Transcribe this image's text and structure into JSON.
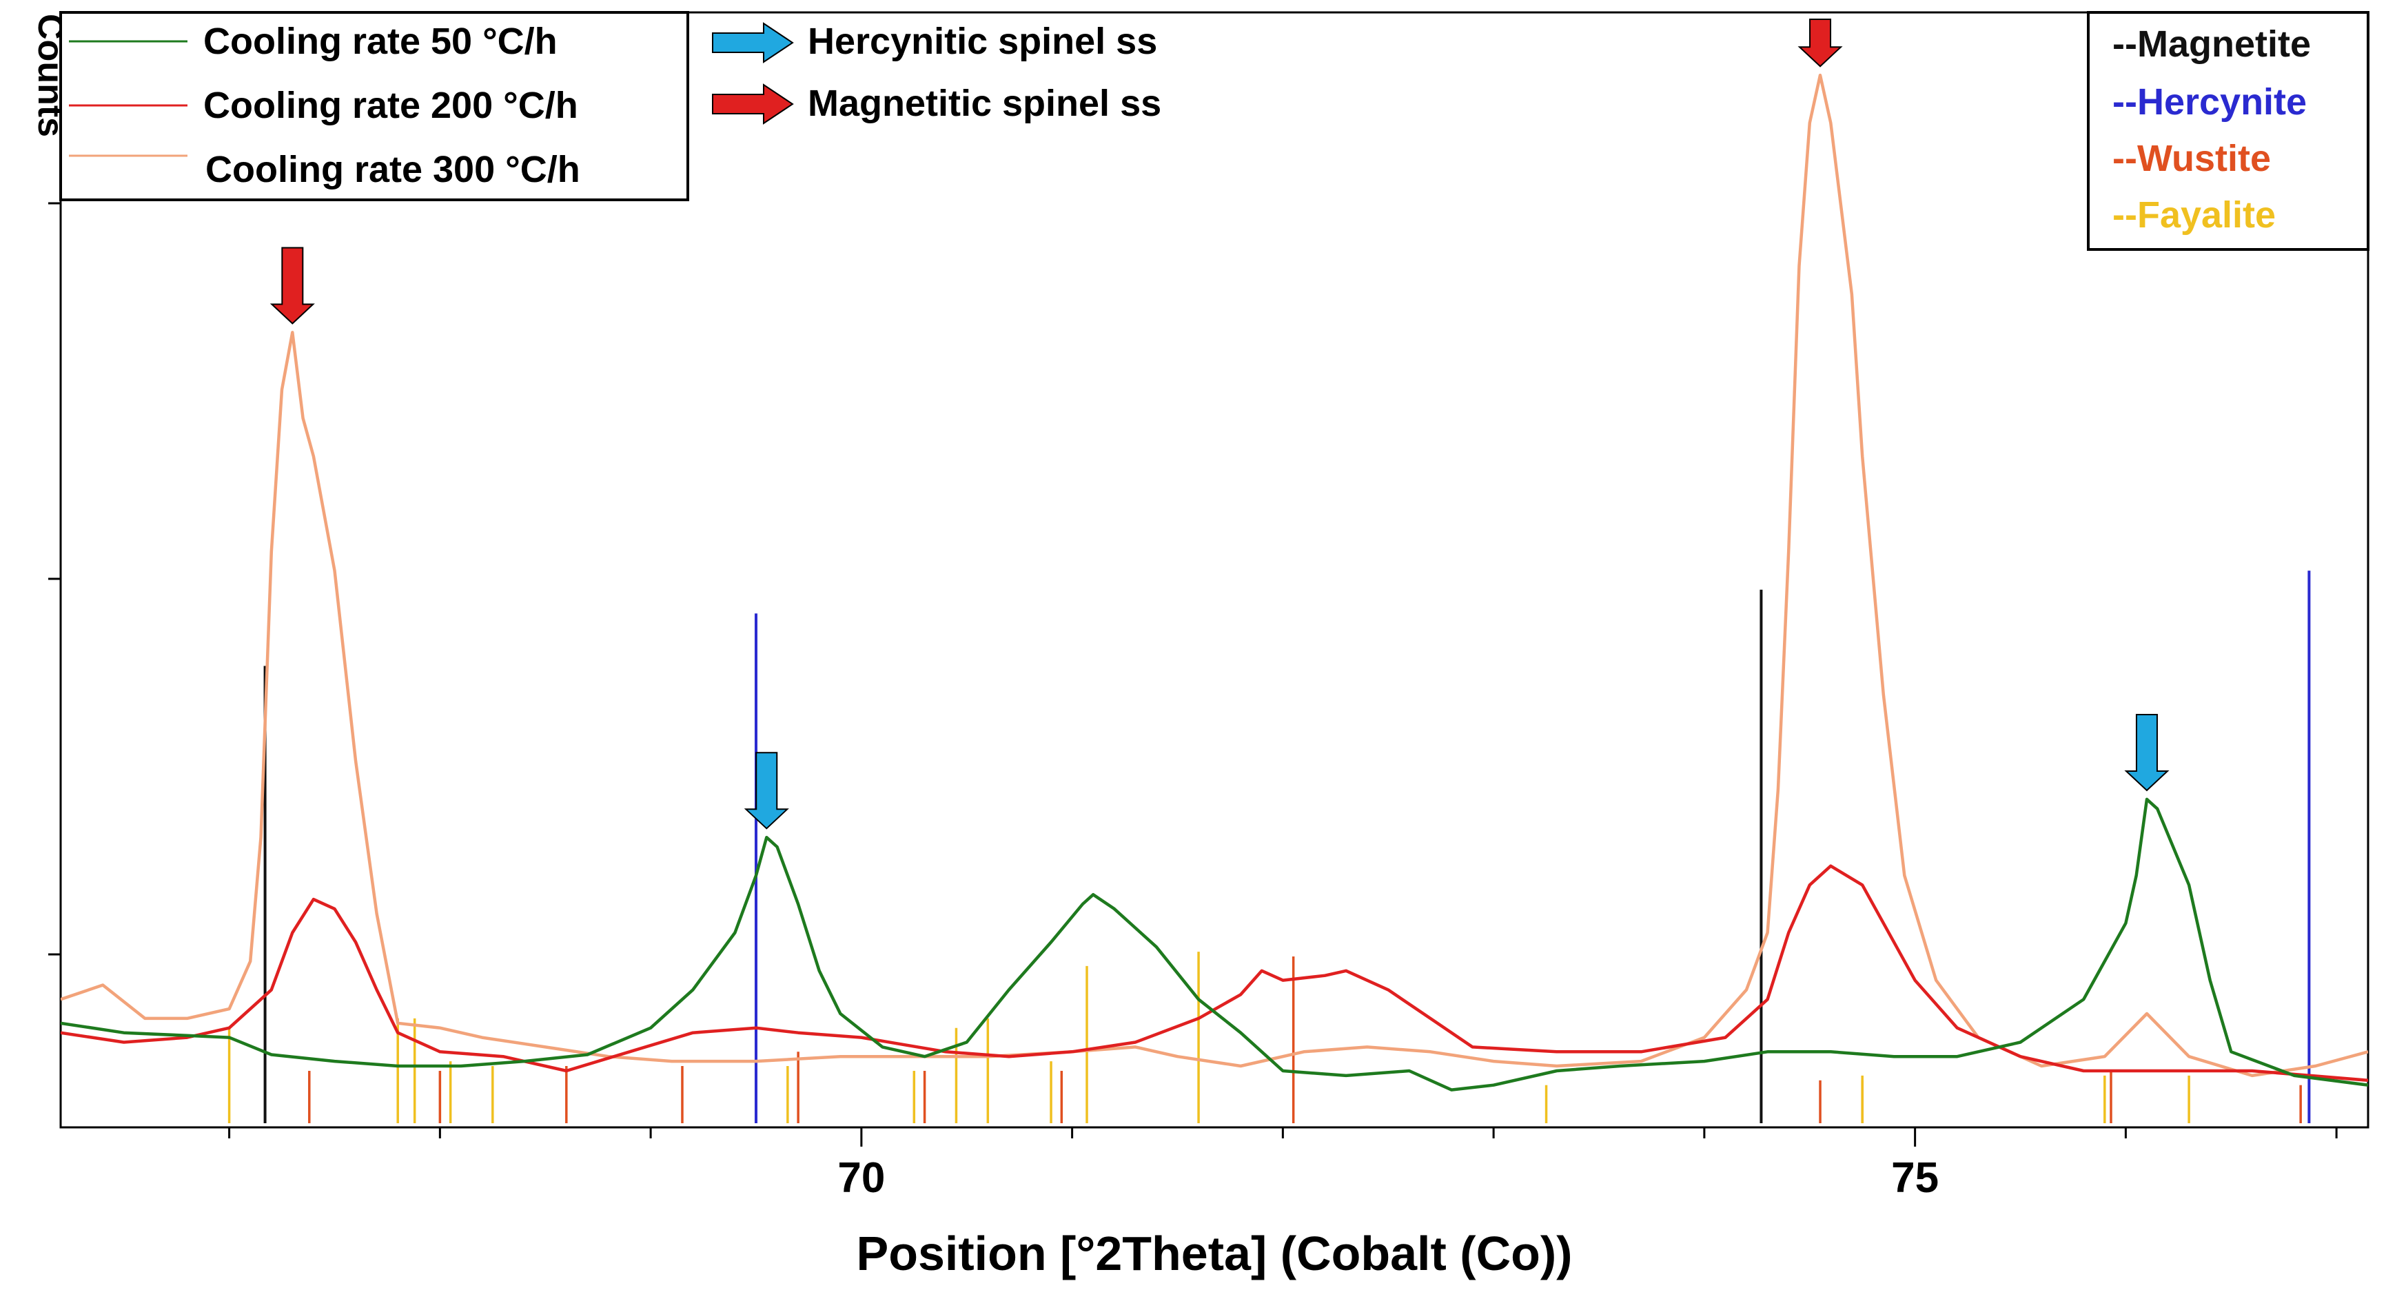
{
  "chart_data": {
    "type": "line",
    "xlabel": "Position [°2Theta] (Cobalt (Co))",
    "ylabel": "Counts",
    "xlim": [
      66.2,
      77.15
    ],
    "ylim": [
      0,
      1150
    ],
    "x_ticks": [
      70,
      75
    ],
    "x_tick_labels": [
      "70",
      "75"
    ],
    "grid": false,
    "legend_placement": "top-left",
    "series": [
      {
        "name": "Cooling rate 50 °C/h",
        "color": "#1e7a1e",
        "points": [
          [
            66.2,
            105
          ],
          [
            66.5,
            95
          ],
          [
            66.8,
            92
          ],
          [
            67.0,
            90
          ],
          [
            67.2,
            72
          ],
          [
            67.5,
            65
          ],
          [
            67.8,
            60
          ],
          [
            68.1,
            60
          ],
          [
            68.4,
            65
          ],
          [
            68.7,
            72
          ],
          [
            69.0,
            100
          ],
          [
            69.2,
            140
          ],
          [
            69.4,
            200
          ],
          [
            69.5,
            260
          ],
          [
            69.55,
            300
          ],
          [
            69.6,
            290
          ],
          [
            69.7,
            230
          ],
          [
            69.8,
            160
          ],
          [
            69.9,
            115
          ],
          [
            70.1,
            80
          ],
          [
            70.3,
            70
          ],
          [
            70.5,
            85
          ],
          [
            70.7,
            140
          ],
          [
            70.9,
            190
          ],
          [
            71.05,
            230
          ],
          [
            71.1,
            240
          ],
          [
            71.2,
            225
          ],
          [
            71.4,
            185
          ],
          [
            71.6,
            130
          ],
          [
            71.8,
            95
          ],
          [
            72.0,
            55
          ],
          [
            72.3,
            50
          ],
          [
            72.6,
            55
          ],
          [
            72.8,
            35
          ],
          [
            73.0,
            40
          ],
          [
            73.3,
            55
          ],
          [
            73.6,
            60
          ],
          [
            74.0,
            65
          ],
          [
            74.3,
            75
          ],
          [
            74.6,
            75
          ],
          [
            74.9,
            70
          ],
          [
            75.2,
            70
          ],
          [
            75.5,
            85
          ],
          [
            75.8,
            130
          ],
          [
            76.0,
            210
          ],
          [
            76.05,
            260
          ],
          [
            76.1,
            340
          ],
          [
            76.15,
            330
          ],
          [
            76.3,
            250
          ],
          [
            76.4,
            150
          ],
          [
            76.5,
            75
          ],
          [
            76.8,
            50
          ],
          [
            77.15,
            40
          ]
        ]
      },
      {
        "name": "Cooling rate 200 °C/h",
        "color": "#e02020",
        "points": [
          [
            66.2,
            95
          ],
          [
            66.5,
            85
          ],
          [
            66.8,
            90
          ],
          [
            67.0,
            100
          ],
          [
            67.2,
            140
          ],
          [
            67.3,
            200
          ],
          [
            67.4,
            235
          ],
          [
            67.5,
            225
          ],
          [
            67.6,
            190
          ],
          [
            67.7,
            140
          ],
          [
            67.8,
            95
          ],
          [
            68.0,
            75
          ],
          [
            68.3,
            70
          ],
          [
            68.6,
            55
          ],
          [
            68.9,
            75
          ],
          [
            69.2,
            95
          ],
          [
            69.5,
            100
          ],
          [
            69.7,
            95
          ],
          [
            70.0,
            90
          ],
          [
            70.4,
            75
          ],
          [
            70.7,
            70
          ],
          [
            71.0,
            75
          ],
          [
            71.3,
            85
          ],
          [
            71.6,
            110
          ],
          [
            71.8,
            135
          ],
          [
            71.9,
            160
          ],
          [
            72.0,
            150
          ],
          [
            72.2,
            155
          ],
          [
            72.3,
            160
          ],
          [
            72.5,
            140
          ],
          [
            72.7,
            110
          ],
          [
            72.9,
            80
          ],
          [
            73.3,
            75
          ],
          [
            73.7,
            75
          ],
          [
            74.1,
            90
          ],
          [
            74.3,
            130
          ],
          [
            74.4,
            200
          ],
          [
            74.5,
            250
          ],
          [
            74.6,
            270
          ],
          [
            74.75,
            250
          ],
          [
            74.9,
            190
          ],
          [
            75.0,
            150
          ],
          [
            75.2,
            100
          ],
          [
            75.5,
            70
          ],
          [
            75.8,
            55
          ],
          [
            76.2,
            55
          ],
          [
            76.6,
            55
          ],
          [
            77.15,
            45
          ]
        ]
      },
      {
        "name": "Cooling rate 300 °C/h",
        "color": "#f2a37a",
        "points": [
          [
            66.2,
            130
          ],
          [
            66.4,
            145
          ],
          [
            66.6,
            110
          ],
          [
            66.8,
            110
          ],
          [
            67.0,
            120
          ],
          [
            67.1,
            170
          ],
          [
            67.15,
            300
          ],
          [
            67.2,
            600
          ],
          [
            67.25,
            770
          ],
          [
            67.3,
            830
          ],
          [
            67.35,
            740
          ],
          [
            67.4,
            700
          ],
          [
            67.5,
            580
          ],
          [
            67.6,
            380
          ],
          [
            67.7,
            220
          ],
          [
            67.8,
            105
          ],
          [
            68.0,
            100
          ],
          [
            68.2,
            90
          ],
          [
            68.5,
            80
          ],
          [
            68.8,
            70
          ],
          [
            69.1,
            65
          ],
          [
            69.5,
            65
          ],
          [
            69.9,
            70
          ],
          [
            70.3,
            70
          ],
          [
            70.6,
            70
          ],
          [
            71.0,
            75
          ],
          [
            71.3,
            80
          ],
          [
            71.5,
            70
          ],
          [
            71.8,
            60
          ],
          [
            72.1,
            75
          ],
          [
            72.4,
            80
          ],
          [
            72.7,
            75
          ],
          [
            73.0,
            65
          ],
          [
            73.3,
            60
          ],
          [
            73.7,
            65
          ],
          [
            74.0,
            90
          ],
          [
            74.2,
            140
          ],
          [
            74.3,
            200
          ],
          [
            74.35,
            350
          ],
          [
            74.4,
            600
          ],
          [
            74.45,
            900
          ],
          [
            74.5,
            1050
          ],
          [
            74.55,
            1100
          ],
          [
            74.6,
            1050
          ],
          [
            74.7,
            870
          ],
          [
            74.75,
            700
          ],
          [
            74.85,
            450
          ],
          [
            74.95,
            260
          ],
          [
            75.1,
            150
          ],
          [
            75.3,
            90
          ],
          [
            75.6,
            60
          ],
          [
            75.9,
            70
          ],
          [
            76.1,
            115
          ],
          [
            76.3,
            70
          ],
          [
            76.6,
            50
          ],
          [
            76.9,
            60
          ],
          [
            77.15,
            75
          ]
        ]
      }
    ],
    "reference_patterns": [
      {
        "name": "--Magnetite",
        "color": "#111111",
        "positions": [
          67.17,
          74.27
        ],
        "heights": [
          480,
          560
        ]
      },
      {
        "name": "--Hercynite",
        "color": "#2a2ad0",
        "positions": [
          69.5,
          76.87
        ],
        "heights": [
          535,
          580
        ]
      },
      {
        "name": "--Wustite",
        "color": "#e05020",
        "positions": [
          67.38,
          68.0,
          68.6,
          69.15,
          69.7,
          70.3,
          70.95,
          72.05,
          74.55,
          74.75,
          75.93,
          76.83
        ],
        "heights": [
          55,
          55,
          60,
          60,
          75,
          55,
          55,
          175,
          45,
          45,
          55,
          40
        ]
      },
      {
        "name": "--Fayalite",
        "color": "#f0c020",
        "positions": [
          67.0,
          67.8,
          67.88,
          68.05,
          68.25,
          69.65,
          70.25,
          70.45,
          70.6,
          70.9,
          71.07,
          71.6,
          73.25,
          74.75,
          75.9,
          76.3
        ],
        "heights": [
          100,
          110,
          110,
          65,
          60,
          60,
          55,
          100,
          110,
          65,
          165,
          180,
          40,
          50,
          50,
          50
        ]
      }
    ],
    "annotations": [
      {
        "label": "Hercynitic spinel ss",
        "color": "#20a8e0",
        "points_at": [
          [
            69.55,
            305
          ],
          [
            76.1,
            345
          ]
        ]
      },
      {
        "label": "Magnetitic spinel ss",
        "color": "#e02020",
        "points_at": [
          [
            67.3,
            835
          ],
          [
            74.55,
            1105
          ]
        ]
      }
    ]
  }
}
